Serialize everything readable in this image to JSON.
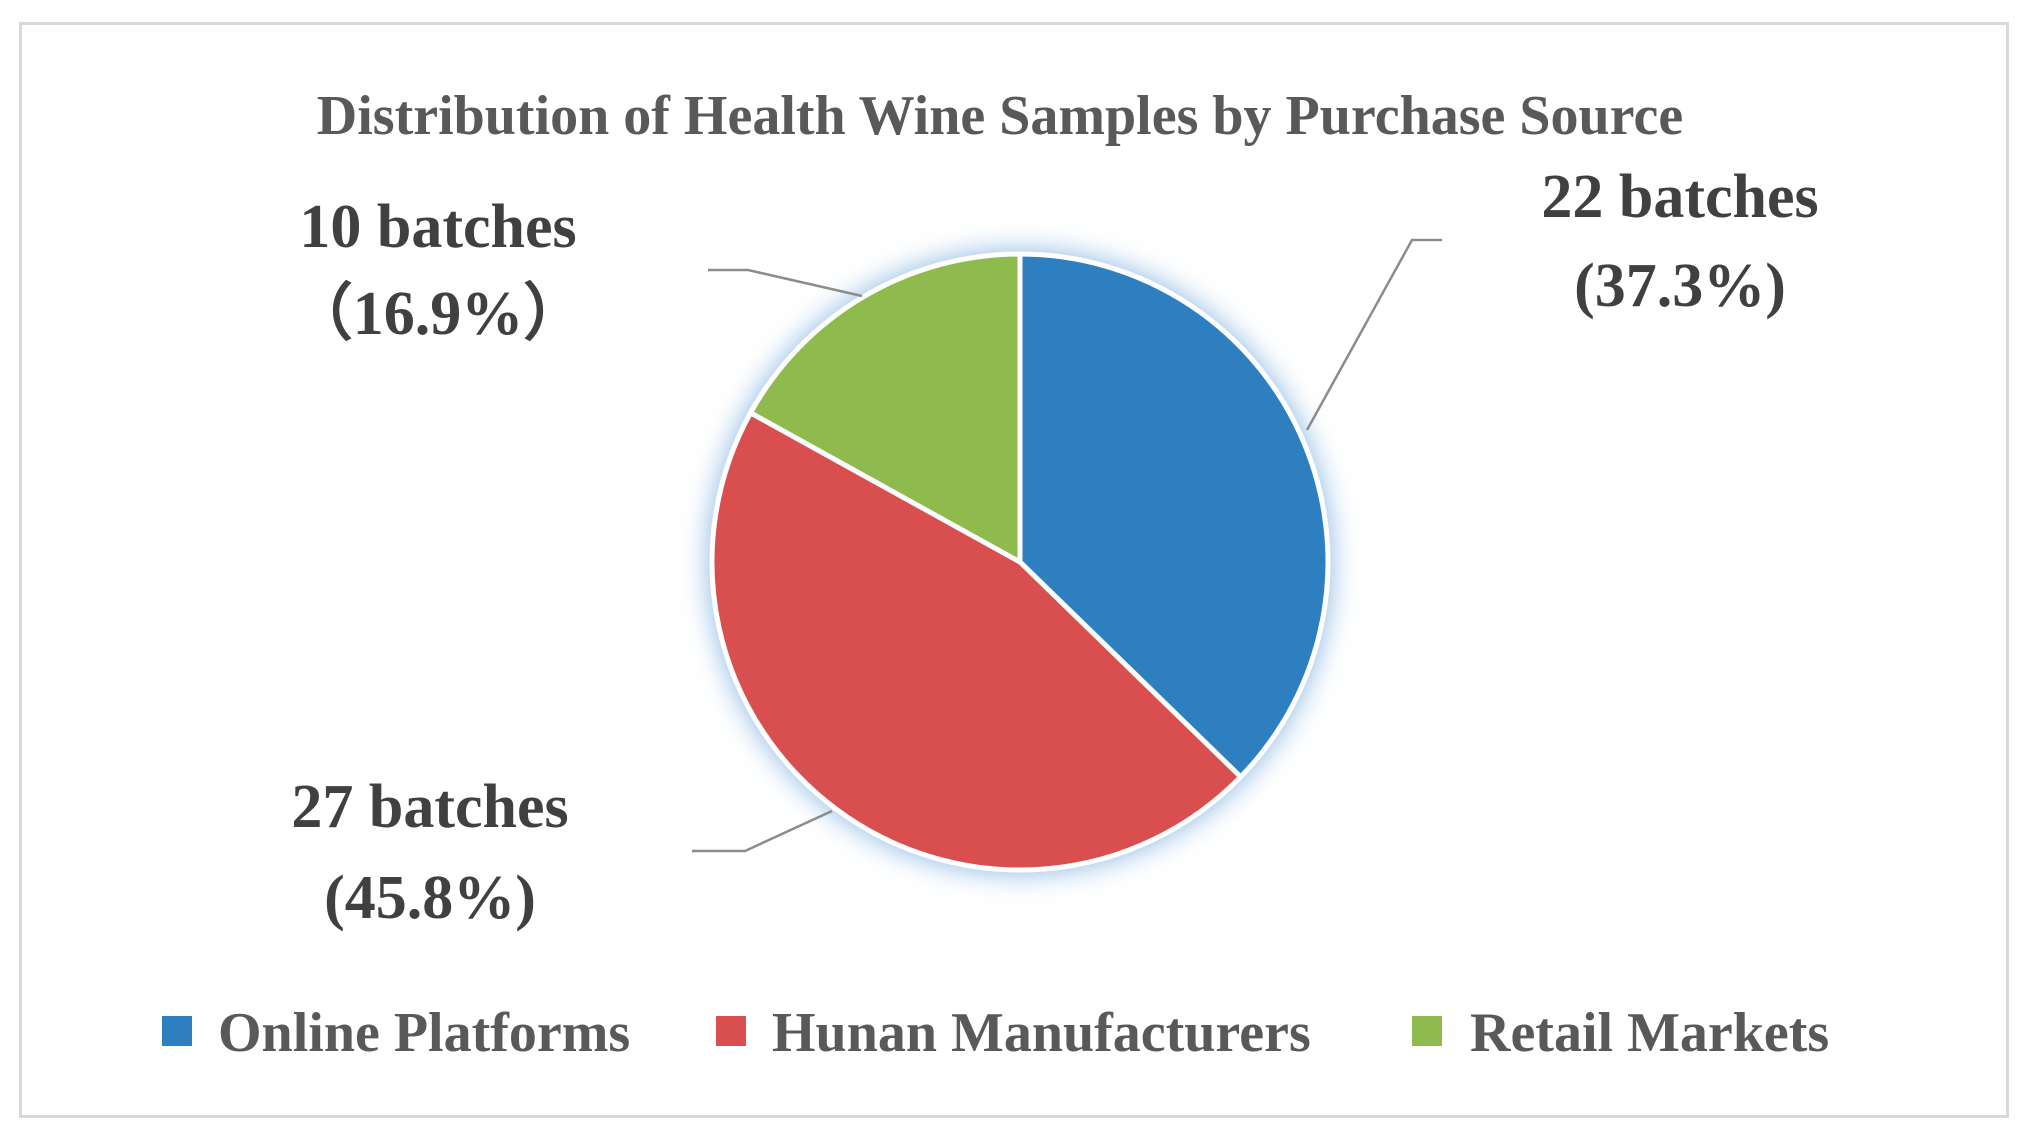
{
  "chart_data": {
    "type": "pie",
    "title": "Distribution of Health Wine Samples by Purchase Source",
    "start_angle_deg": 0,
    "direction": "clockwise",
    "legend_position": "bottom",
    "slices": [
      {
        "name": "Online Platforms",
        "value": 22,
        "percent": 37.3,
        "color": "#2e7fc0",
        "label_line1": "22 batches",
        "label_line2": "(37.3%)"
      },
      {
        "name": "Hunan Manufacturers",
        "value": 27,
        "percent": 45.8,
        "color": "#d94f4f",
        "label_line1": "27  batches",
        "label_line2": "(45.8%)"
      },
      {
        "name": "Retail Markets",
        "value": 10,
        "percent": 16.9,
        "color": "#8fba4e",
        "label_line1": "10 batches",
        "label_line2": "（16.9%）"
      }
    ]
  }
}
